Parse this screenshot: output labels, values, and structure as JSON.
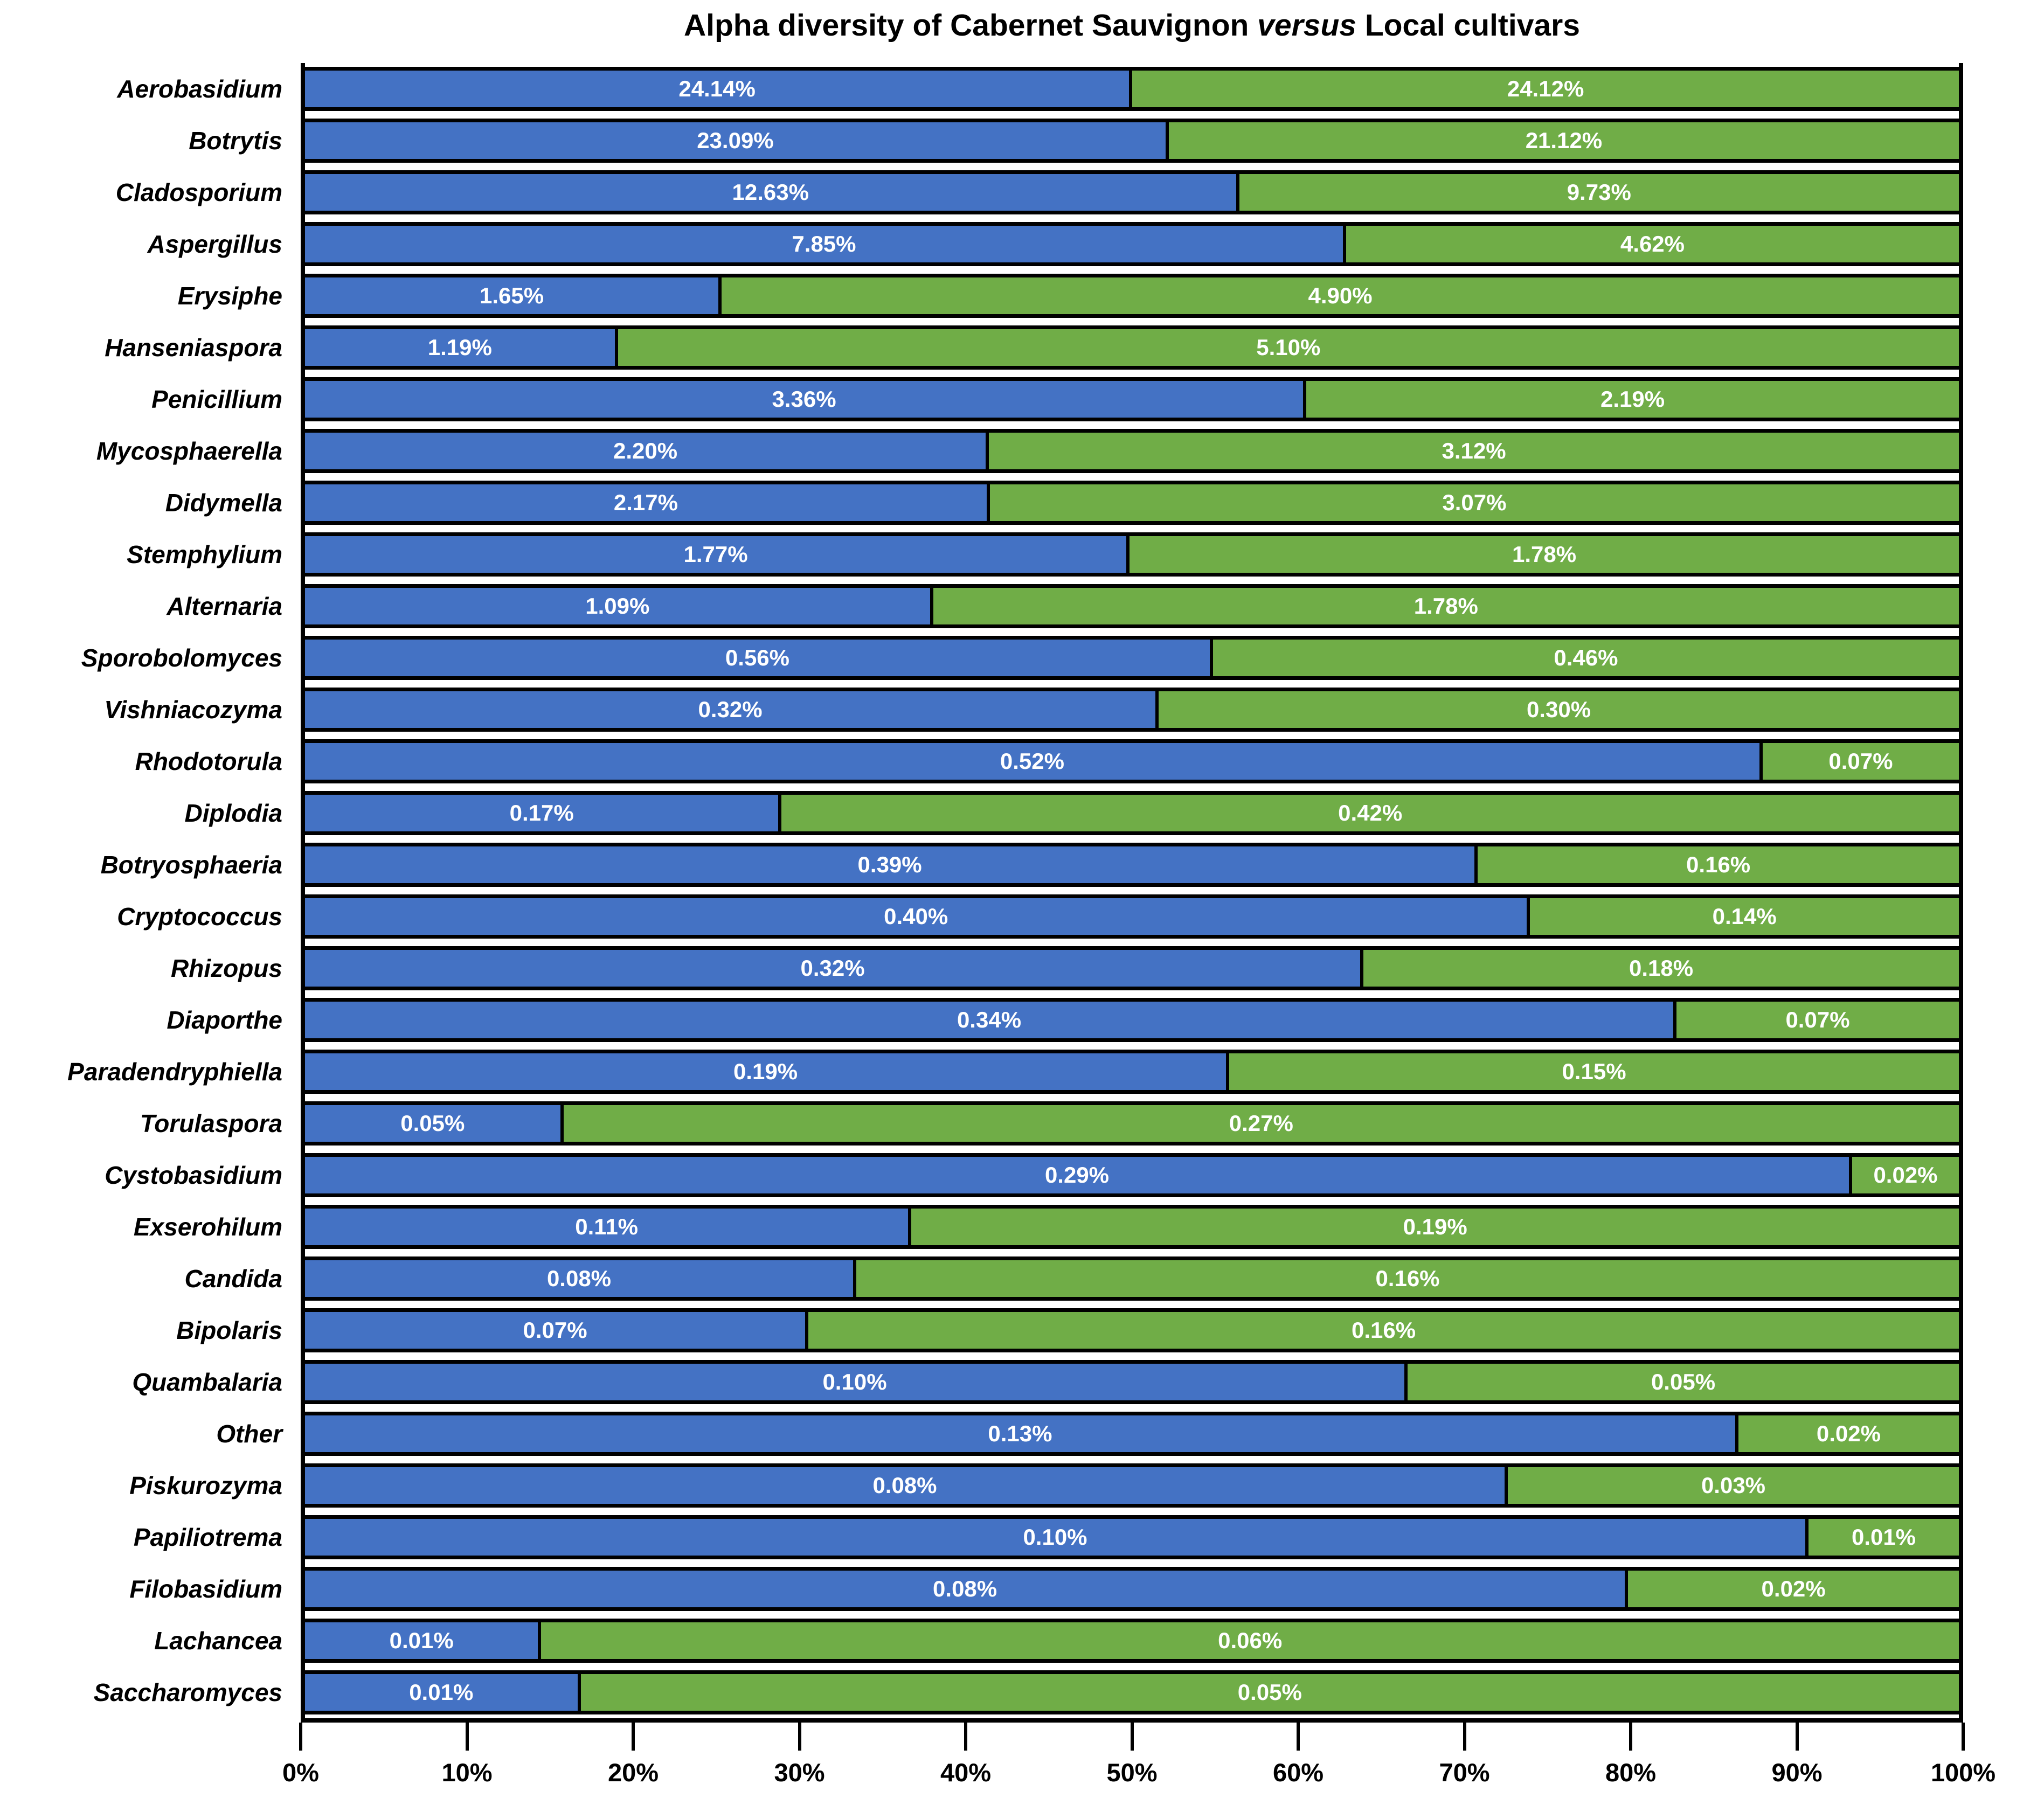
{
  "colors": {
    "cabernet_blue": "#4472C4",
    "local_green": "#70AD47",
    "border": "#000000",
    "value_label": "#ffffff",
    "background": "#ffffff"
  },
  "chart_data": {
    "type": "bar",
    "subtype": "horizontal-100pct-stacked",
    "title": "Alpha diversity of Cabernet Sauvignon versus Local cultivars",
    "title_parts": {
      "pre": "Alpha diversity of Cabernet Sauvignon ",
      "italic": "versus",
      "post": " Local cultivars"
    },
    "normalization": "each row scaled to blue/(blue+green) of full width",
    "legend_position": "none",
    "grid": "off",
    "x_axis": {
      "range": [
        0,
        100
      ],
      "tick_labels": [
        "0%",
        "10%",
        "20%",
        "30%",
        "40%",
        "50%",
        "60%",
        "70%",
        "80%",
        "90%",
        "100%"
      ]
    },
    "categories": [
      "Aerobasidium",
      "Botrytis",
      "Cladosporium",
      "Aspergillus",
      "Erysiphe",
      "Hanseniaspora",
      "Penicillium",
      "Mycosphaerella",
      "Didymella",
      "Stemphylium",
      "Alternaria",
      "Sporobolomyces",
      "Vishniacozyma",
      "Rhodotorula",
      "Diplodia",
      "Botryosphaeria",
      "Cryptococcus",
      "Rhizopus",
      "Diaporthe",
      "Paradendryphiella",
      "Torulaspora",
      "Cystobasidium",
      "Exserohilum",
      "Candida",
      "Bipolaris",
      "Quambalaria",
      "Other",
      "Piskurozyma",
      "Papiliotrema",
      "Filobasidium",
      "Lachancea",
      "Saccharomyces"
    ],
    "series": [
      {
        "name": "Cabernet Sauvignon",
        "color": "#4472C4",
        "values": [
          24.14,
          23.09,
          12.63,
          7.85,
          1.65,
          1.19,
          3.36,
          2.2,
          2.17,
          1.77,
          1.09,
          0.56,
          0.32,
          0.52,
          0.17,
          0.39,
          0.4,
          0.32,
          0.34,
          0.19,
          0.05,
          0.29,
          0.11,
          0.08,
          0.07,
          0.1,
          0.13,
          0.08,
          0.1,
          0.08,
          0.01,
          0.01
        ]
      },
      {
        "name": "Local cultivars",
        "color": "#70AD47",
        "values": [
          24.12,
          21.12,
          9.73,
          4.62,
          4.9,
          5.1,
          2.19,
          3.12,
          3.07,
          1.78,
          1.78,
          0.46,
          0.3,
          0.07,
          0.42,
          0.16,
          0.14,
          0.18,
          0.07,
          0.15,
          0.27,
          0.02,
          0.19,
          0.16,
          0.16,
          0.05,
          0.02,
          0.03,
          0.01,
          0.02,
          0.06,
          0.05
        ]
      }
    ],
    "value_label_suffix": "%"
  }
}
